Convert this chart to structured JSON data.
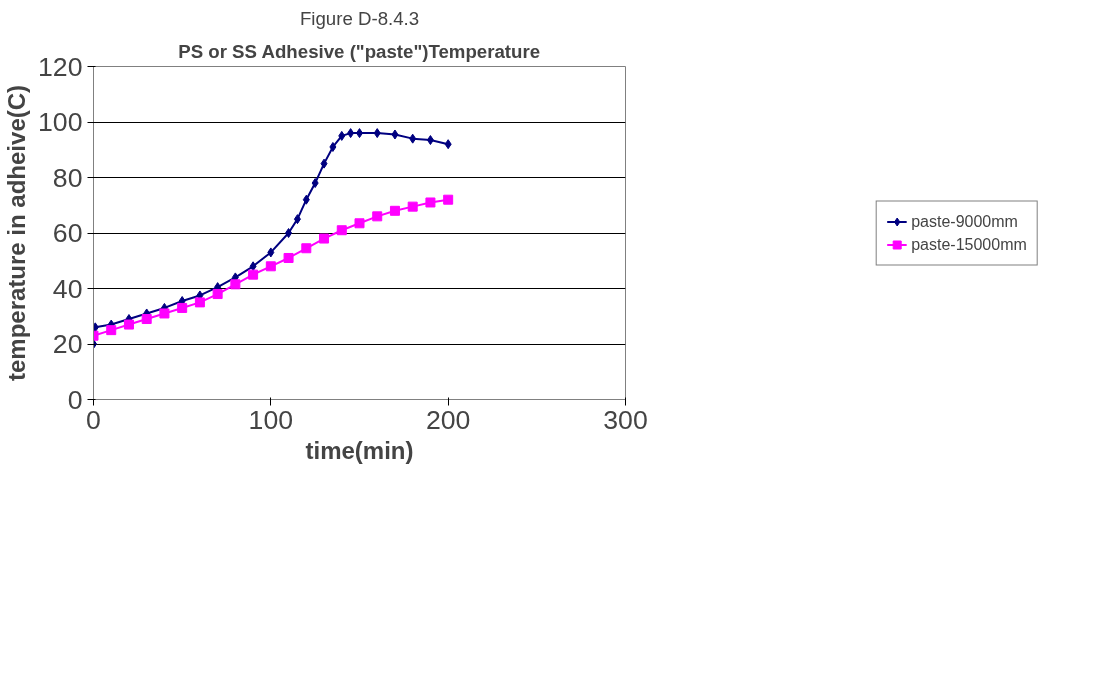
{
  "chart_data": {
    "type": "line",
    "title": "Figure D-8.4.3",
    "subtitle": "PS or SS Adhesive (\"paste\")Temperature",
    "xlabel": "time(min)",
    "ylabel": "temperature in adheive(C)",
    "xlim": [
      0,
      300
    ],
    "xticks": [
      0,
      100,
      200,
      300
    ],
    "ylim": [
      0,
      120
    ],
    "yticks": [
      0,
      20,
      40,
      60,
      80,
      100,
      120
    ],
    "grid": "y",
    "legend": "right",
    "series": [
      {
        "name": "paste-9000mm",
        "color": "#000080",
        "marker": "diamond",
        "x": [
          0,
          1,
          10,
          20,
          30,
          40,
          50,
          60,
          70,
          80,
          90,
          100,
          110,
          115,
          120,
          125,
          130,
          135,
          140,
          145,
          150,
          160,
          170,
          180,
          190,
          200
        ],
        "values": [
          20,
          26,
          27,
          29,
          31,
          33,
          35.5,
          37.5,
          40.5,
          44,
          48,
          53,
          60,
          65,
          72,
          78,
          85,
          91,
          95,
          96,
          96,
          96,
          95.5,
          94,
          93.5,
          92
        ]
      },
      {
        "name": "paste-15000mm",
        "color": "#ff00ff",
        "marker": "square",
        "x": [
          0,
          10,
          20,
          30,
          40,
          50,
          60,
          70,
          80,
          90,
          100,
          110,
          120,
          130,
          140,
          150,
          160,
          170,
          180,
          190,
          200
        ],
        "values": [
          23,
          25,
          27,
          29,
          31,
          33,
          35,
          38,
          41.5,
          45,
          48,
          51,
          54.5,
          58,
          61,
          63.5,
          66,
          68,
          69.5,
          71,
          72
        ]
      }
    ]
  }
}
